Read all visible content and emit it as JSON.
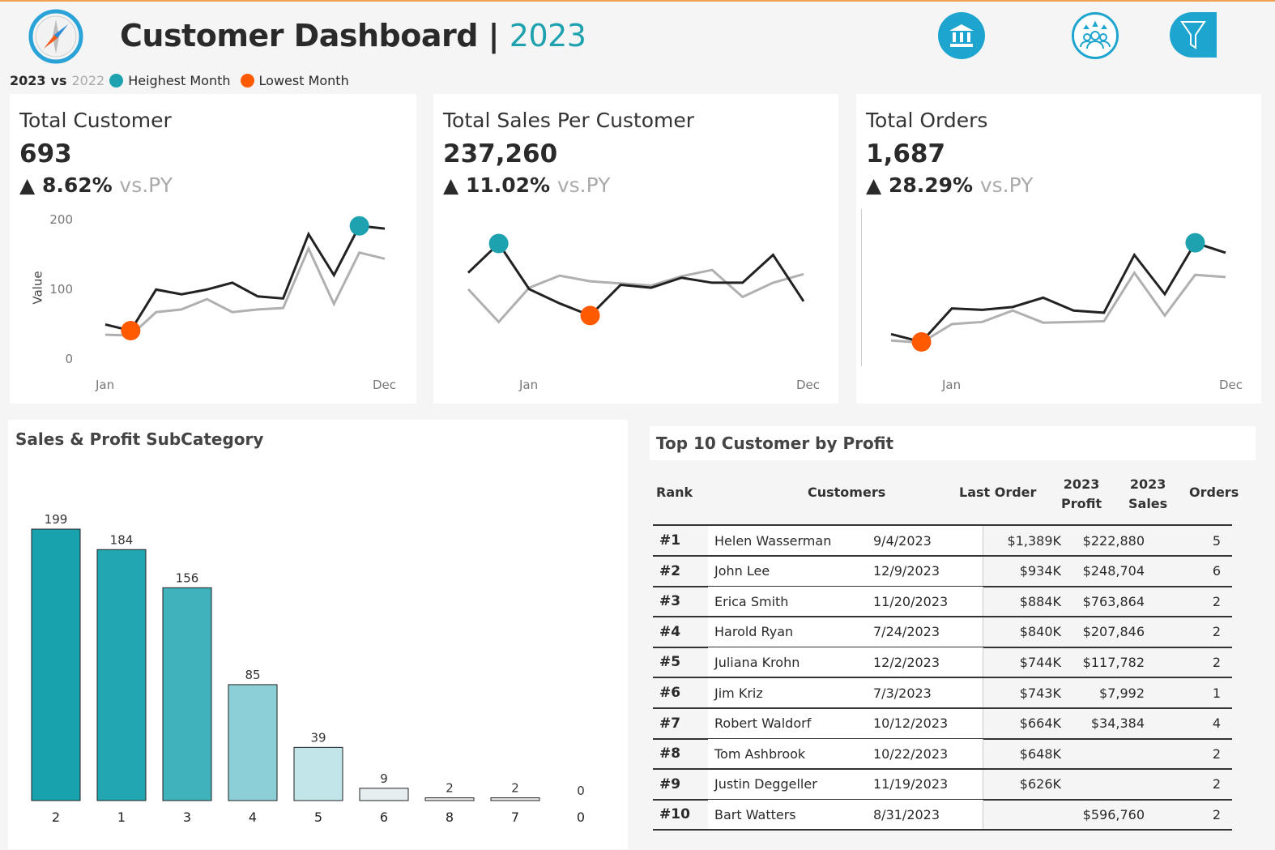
{
  "header": {
    "title": "Customer Dashboard",
    "separator": "|",
    "year": "2023",
    "legend": {
      "current": "2023",
      "vs": "vs",
      "previous": "2022",
      "highest": "Heighest Month",
      "lowest": "Lowest Month"
    },
    "icons": [
      "bank-icon",
      "customers-rating-icon",
      "filter-icon"
    ]
  },
  "colors": {
    "accent": "#1ea2b0",
    "high": "#1ea2b0",
    "low": "#ff5a00",
    "current_line": "#222222",
    "previous_line": "#b0b0b0"
  },
  "kpis": [
    {
      "title": "Total Customer",
      "value": "693",
      "change": "8.62%",
      "vs": "vs.PY",
      "axis_label": "Value",
      "yticks": [
        "200",
        "100",
        "0"
      ],
      "x_start": "Jan",
      "x_end": "Dec",
      "current": [
        48,
        39,
        99,
        92,
        99,
        109,
        89,
        86,
        180,
        120,
        192,
        188
      ],
      "previous": [
        33,
        32,
        66,
        70,
        85,
        66,
        70,
        72,
        159,
        78,
        153,
        144
      ],
      "high_index": 10,
      "low_index": 1
    },
    {
      "title": "Total Sales Per Customer",
      "value": "237,260",
      "change": "11.02%",
      "vs": "vs.PY",
      "x_start": "Jan",
      "x_end": "Dec",
      "current": [
        130,
        171,
        107,
        87,
        70,
        113,
        109,
        123,
        116,
        116,
        155,
        90
      ],
      "previous": [
        107,
        61,
        109,
        126,
        118,
        115,
        112,
        125,
        134,
        96,
        116,
        128
      ],
      "high_index": 1,
      "low_index": 4
    },
    {
      "title": "Total Orders",
      "value": "1,687",
      "change": "28.29%",
      "vs": "vs.PY",
      "x_start": "Jan",
      "x_end": "Dec",
      "current": [
        44,
        33,
        80,
        78,
        82,
        95,
        77,
        74,
        155,
        100,
        172,
        158
      ],
      "previous": [
        35,
        32,
        58,
        61,
        77,
        60,
        61,
        62,
        130,
        70,
        127,
        124
      ],
      "high_index": 10,
      "low_index": 1
    }
  ],
  "chart_data": {
    "type": "bar",
    "title": "Sales & Profit SubCategory",
    "categories": [
      "2",
      "1",
      "3",
      "4",
      "5",
      "6",
      "8",
      "7",
      "0"
    ],
    "values": [
      199,
      184,
      156,
      85,
      39,
      9,
      2,
      2,
      0
    ],
    "ylim": [
      0,
      210
    ]
  },
  "table": {
    "title": "Top 10 Customer by Profit",
    "headers": {
      "rank": "Rank",
      "customers": "Customers",
      "last_order": "Last Order",
      "profit_year": "2023",
      "profit": "Profit",
      "sales_year": "2023",
      "sales": "Sales",
      "orders": "Orders"
    },
    "rows": [
      {
        "rank": "#1",
        "name": "Helen Wasserman",
        "last": "9/4/2023",
        "profit": "$1,389K",
        "sales": "$222,880",
        "orders": "5"
      },
      {
        "rank": "#2",
        "name": "John Lee",
        "last": "12/9/2023",
        "profit": "$934K",
        "sales": "$248,704",
        "orders": "6"
      },
      {
        "rank": "#3",
        "name": "Erica Smith",
        "last": "11/20/2023",
        "profit": "$884K",
        "sales": "$763,864",
        "orders": "2"
      },
      {
        "rank": "#4",
        "name": "Harold Ryan",
        "last": "7/24/2023",
        "profit": "$840K",
        "sales": "$207,846",
        "orders": "2"
      },
      {
        "rank": "#5",
        "name": "Juliana Krohn",
        "last": "12/2/2023",
        "profit": "$744K",
        "sales": "$117,782",
        "orders": "2"
      },
      {
        "rank": "#6",
        "name": "Jim Kriz",
        "last": "7/3/2023",
        "profit": "$743K",
        "sales": "$7,992",
        "orders": "1"
      },
      {
        "rank": "#7",
        "name": "Robert Waldorf",
        "last": "10/12/2023",
        "profit": "$664K",
        "sales": "$34,384",
        "orders": "4"
      },
      {
        "rank": "#8",
        "name": "Tom Ashbrook",
        "last": "10/22/2023",
        "profit": "$648K",
        "sales": "",
        "orders": "2"
      },
      {
        "rank": "#9",
        "name": "Justin Deggeller",
        "last": "11/19/2023",
        "profit": "$626K",
        "sales": "",
        "orders": "2"
      },
      {
        "rank": "#10",
        "name": "Bart Watters",
        "last": "8/31/2023",
        "profit": "",
        "sales": "$596,760",
        "orders": "2"
      }
    ]
  }
}
